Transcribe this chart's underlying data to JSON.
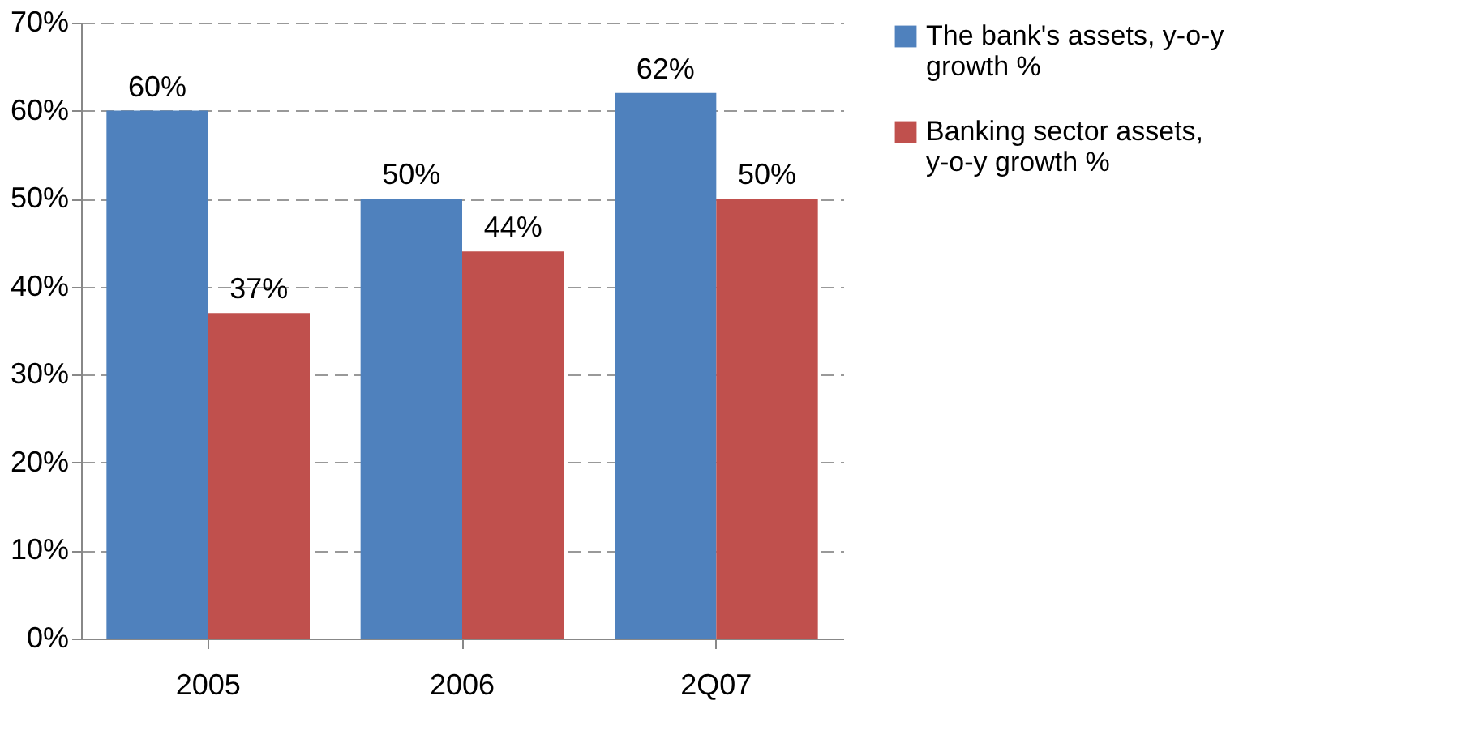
{
  "chart_data": {
    "type": "bar",
    "categories": [
      "2005",
      "2006",
      "2Q07"
    ],
    "series": [
      {
        "name": "The bank's assets, y-o-y growth %",
        "color": "#4f81bd",
        "values": [
          60,
          50,
          62
        ]
      },
      {
        "name": "Banking sector assets, y-o-y growth %",
        "color": "#c0504d",
        "values": [
          37,
          44,
          50
        ]
      }
    ],
    "value_labels": [
      [
        "60%",
        "50%",
        "62%"
      ],
      [
        "37%",
        "44%",
        "50%"
      ]
    ],
    "ylim": [
      0,
      70
    ],
    "yticks": [
      {
        "value": 0,
        "label": "0%"
      },
      {
        "value": 10,
        "label": "10%"
      },
      {
        "value": 20,
        "label": "20%"
      },
      {
        "value": 30,
        "label": "30%"
      },
      {
        "value": 40,
        "label": "40%"
      },
      {
        "value": 50,
        "label": "50%"
      },
      {
        "value": 60,
        "label": "60%"
      },
      {
        "value": 70,
        "label": "70%"
      }
    ],
    "grid": "y",
    "legend": "right"
  }
}
